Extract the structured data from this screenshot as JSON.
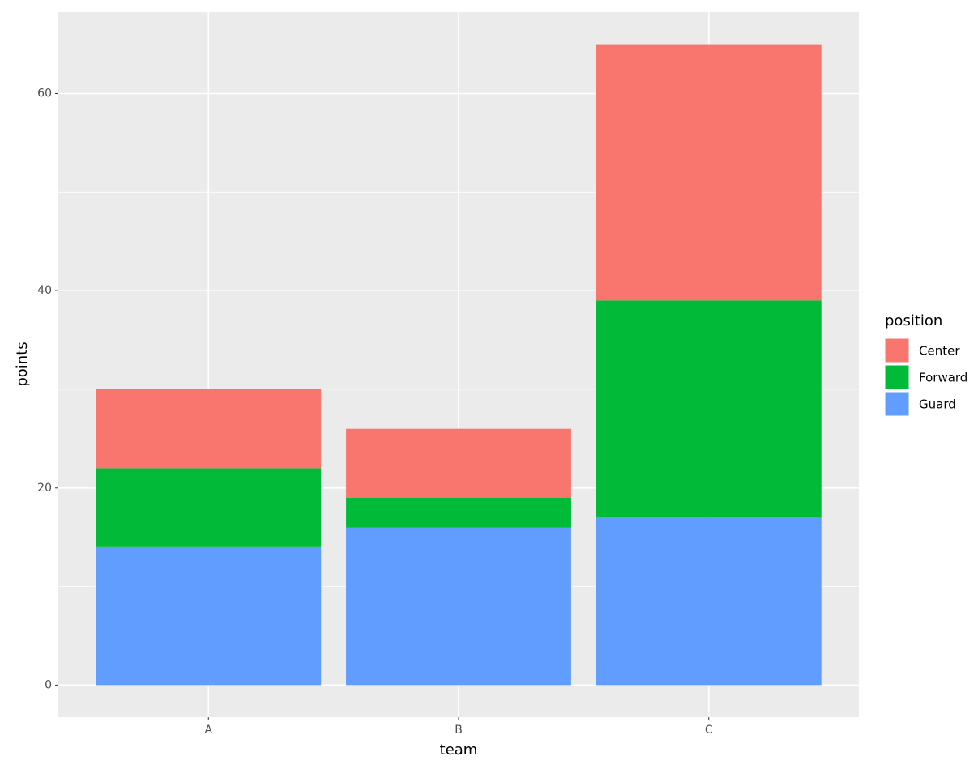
{
  "chart_data": {
    "type": "stacked_bar",
    "x_label": "team",
    "y_label": "points",
    "categories": [
      "A",
      "B",
      "C"
    ],
    "series": [
      {
        "name": "Center",
        "color": "#f8766d",
        "values": [
          8,
          7,
          26
        ]
      },
      {
        "name": "Forward",
        "color": "#00ba38",
        "values": [
          8,
          3,
          22
        ]
      },
      {
        "name": "Guard",
        "color": "#619cff",
        "values": [
          14,
          16,
          17
        ]
      }
    ],
    "legend_title": "position",
    "legend_position": "right",
    "ylim": [
      -3.25,
      68.25
    ],
    "yticks": [
      0,
      20,
      40,
      60
    ],
    "y_minor_grid": [
      10,
      30,
      50
    ],
    "grid": true
  }
}
